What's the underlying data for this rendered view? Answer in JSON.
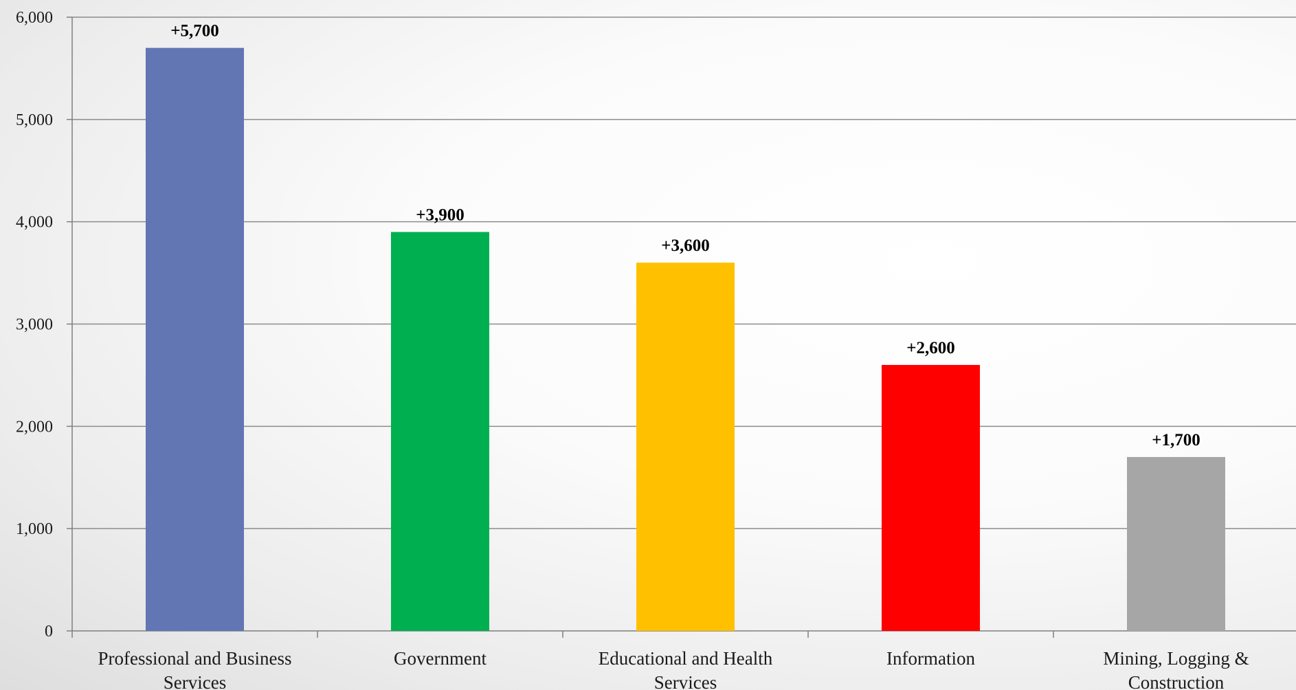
{
  "chart_data": {
    "type": "bar",
    "categories": [
      [
        "Professional and Business",
        "Services"
      ],
      [
        "Government"
      ],
      [
        "Educational and Health",
        "Services"
      ],
      [
        "Information"
      ],
      [
        "Mining, Logging &",
        "Construction"
      ]
    ],
    "values": [
      5700,
      3900,
      3600,
      2600,
      1700
    ],
    "data_labels": [
      "+5,700",
      "+3,900",
      "+3,600",
      "+2,600",
      "+1,700"
    ],
    "colors": [
      "#6276b4",
      "#00b050",
      "#ffc000",
      "#ff0000",
      "#a6a6a6"
    ],
    "ylim": [
      0,
      6000
    ],
    "yticks": [
      0,
      1000,
      2000,
      3000,
      4000,
      5000,
      6000
    ],
    "ytick_labels": [
      "0",
      "1,000",
      "2,000",
      "3,000",
      "4,000",
      "5,000",
      "6,000"
    ],
    "title": "",
    "xlabel": "",
    "ylabel": "",
    "grid": true,
    "legend": false,
    "gridline_color": "#8c8c8c",
    "axis_color": "#7f7f7f"
  }
}
